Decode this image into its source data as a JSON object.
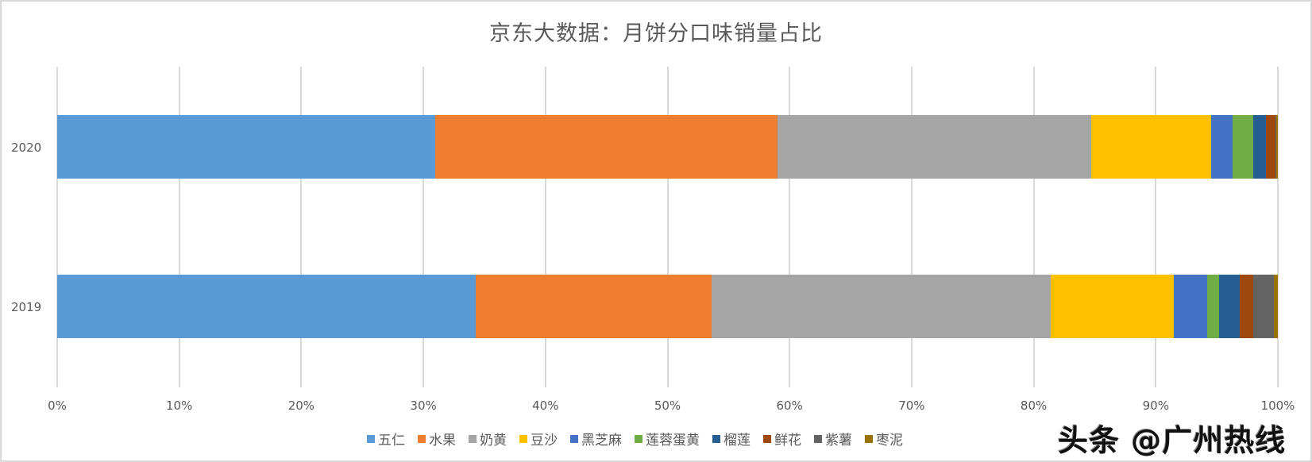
{
  "chart_data": {
    "type": "bar",
    "orientation": "horizontal",
    "stacked": "percent",
    "title": "京东大数据：月饼分口味销量占比",
    "xlabel": "",
    "ylabel": "",
    "xlim": [
      0,
      100
    ],
    "x_ticks": [
      "0%",
      "10%",
      "20%",
      "30%",
      "40%",
      "50%",
      "60%",
      "70%",
      "80%",
      "90%",
      "100%"
    ],
    "categories": [
      "2020",
      "2019"
    ],
    "legend_position": "bottom",
    "grid": true,
    "series": [
      {
        "name": "五仁",
        "color": "#5B9BD5",
        "values": [
          31.0,
          34.3
        ]
      },
      {
        "name": "水果",
        "color": "#ED7D31",
        "values": [
          28.1,
          19.3
        ]
      },
      {
        "name": "奶黄",
        "color": "#A5A5A5",
        "values": [
          25.7,
          27.8
        ]
      },
      {
        "name": "豆沙",
        "color": "#FFC000",
        "values": [
          9.8,
          10.1
        ]
      },
      {
        "name": "黑芝麻",
        "color": "#4472C4",
        "values": [
          1.8,
          2.7
        ]
      },
      {
        "name": "莲蓉蛋黄",
        "color": "#70AD47",
        "values": [
          1.7,
          1.0
        ]
      },
      {
        "name": "榴莲",
        "color": "#255E91",
        "values": [
          1.0,
          1.7
        ]
      },
      {
        "name": "鲜花",
        "color": "#9E480E",
        "values": [
          0.8,
          1.1
        ]
      },
      {
        "name": "紫薯",
        "color": "#636363",
        "values": [
          0.1,
          1.7
        ]
      },
      {
        "name": "枣泥",
        "color": "#997300",
        "values": [
          0.1,
          0.3
        ]
      }
    ]
  },
  "watermark": "头条 @广州热线"
}
